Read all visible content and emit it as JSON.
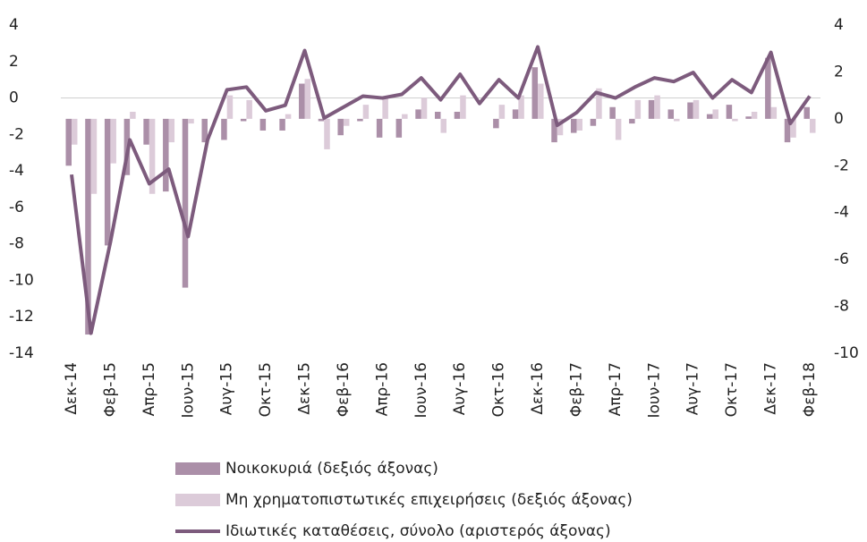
{
  "chart_data": {
    "type": "bar_line",
    "categories": [
      "Δεκ-14",
      null,
      "Φεβ-15",
      null,
      "Απρ-15",
      null,
      "Ιουν-15",
      null,
      "Αυγ-15",
      null,
      "Οκτ-15",
      null,
      "Δεκ-15",
      null,
      "Φεβ-16",
      null,
      "Απρ-16",
      null,
      "Ιουν-16",
      null,
      "Αυγ-16",
      null,
      "Οκτ-16",
      null,
      "Δεκ-16",
      null,
      "Φεβ-17",
      null,
      "Απρ-17",
      null,
      "Ιουν-17",
      null,
      "Αυγ-17",
      null,
      "Οκτ-17",
      null,
      "Δεκ-17",
      null,
      "Φεβ-18"
    ],
    "ylim": [
      -14,
      4
    ],
    "yticks": [
      -14,
      -12,
      -10,
      -8,
      -6,
      -4,
      -2,
      0,
      2,
      4
    ],
    "y2lim": [
      -10,
      4
    ],
    "y2ticks": [
      -10,
      -8,
      -6,
      -4,
      -2,
      0,
      2,
      4
    ],
    "series": [
      {
        "name": "Νοικοκυριά (δεξιός άξονας)",
        "type": "bar",
        "axis": "y2",
        "color": "#ab8fa8",
        "values": [
          -2.0,
          -9.2,
          -5.4,
          -2.4,
          -1.1,
          -3.1,
          -7.2,
          -1.0,
          -0.9,
          -0.1,
          -0.5,
          -0.5,
          1.5,
          -0.1,
          -0.7,
          -0.1,
          -0.8,
          -0.8,
          0.4,
          0.3,
          0.3,
          0,
          -0.4,
          0.4,
          2.2,
          -1.0,
          -0.6,
          -0.3,
          0.5,
          -0.2,
          0.8,
          0.4,
          0.7,
          0.2,
          0.6,
          0.1,
          2.6,
          -1.0,
          0.5
        ]
      },
      {
        "name": "Μη χρηματοπιστωτικές επιχειρήσεις (δεξιός άξονας)",
        "type": "bar",
        "axis": "y2",
        "color": "#dccbd9",
        "values": [
          -1.1,
          -3.2,
          -1.9,
          0.3,
          -3.2,
          -1.0,
          -0.2,
          0,
          1.0,
          0.8,
          0,
          0.2,
          1.7,
          -1.3,
          -0.3,
          0.6,
          0.9,
          0.2,
          0.9,
          -0.6,
          1.0,
          0,
          0.6,
          1.0,
          1.5,
          -0.7,
          -0.5,
          1.3,
          -0.9,
          0.8,
          1.0,
          -0.1,
          0.8,
          0.4,
          -0.1,
          0.3,
          0.5,
          -0.8,
          -0.6
        ]
      },
      {
        "name": "Ιδιωτικές καταθέσεις, σύνολο (αριστερός άξονας)",
        "type": "line",
        "axis": "y",
        "color": "#7d5b7d",
        "values": [
          -4.2,
          -12.9,
          -7.9,
          -2.3,
          -4.7,
          -3.9,
          -7.6,
          -2.3,
          0.45,
          0.6,
          -0.7,
          -0.4,
          2.6,
          -1.1,
          -0.5,
          0.1,
          0,
          0.2,
          1.1,
          -0.1,
          1.3,
          -0.3,
          1.0,
          0,
          2.8,
          -1.5,
          -0.8,
          0.3,
          0,
          0.6,
          1.1,
          0.9,
          1.4,
          0,
          1.0,
          0.3,
          2.5,
          -1.4,
          0.1
        ]
      }
    ]
  }
}
